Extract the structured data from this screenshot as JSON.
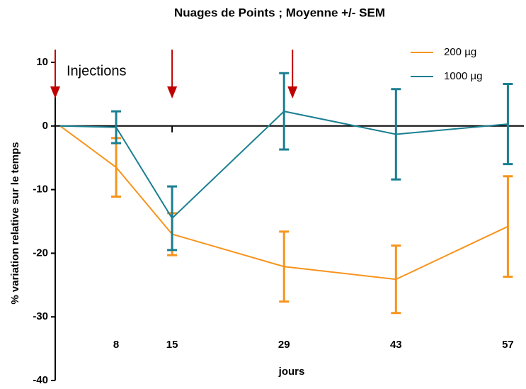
{
  "chart_data": {
    "type": "line",
    "title": "Nuages de Points ; Moyenne +/- SEM",
    "xlabel": "jours",
    "ylabel": "% variation relative sur le temps",
    "x": [
      1,
      8,
      15,
      29,
      43,
      57
    ],
    "series": [
      {
        "name": "200 µg",
        "color": "#f7941d",
        "values": [
          0,
          -6.5,
          -17,
          -22.1,
          -24.1,
          -15.8
        ],
        "errors": [
          null,
          4.6,
          3.3,
          5.5,
          5.3,
          7.9
        ]
      },
      {
        "name": "1000 µg",
        "color": "#1a7f91",
        "values": [
          0,
          -0.2,
          -14.5,
          2.3,
          -1.3,
          0.3
        ],
        "errors": [
          null,
          2.5,
          5,
          6,
          7.1,
          6.3
        ]
      }
    ],
    "xlim": [
      0.38,
      59
    ],
    "xticks": [
      8,
      15,
      29,
      43,
      57
    ],
    "ylim": [
      -40,
      10
    ],
    "yticks": [
      10,
      0,
      -10,
      -20,
      -30,
      -40
    ],
    "annotation": {
      "text": "Injections",
      "arrows_x": [
        1,
        15,
        29
      ],
      "color": "#c00000"
    },
    "legend": "upper right"
  }
}
